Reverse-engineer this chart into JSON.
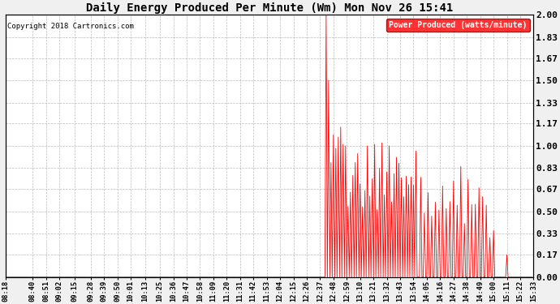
{
  "title": "Daily Energy Produced Per Minute (Wm) Mon Nov 26 15:41",
  "copyright": "Copyright 2018 Cartronics.com",
  "legend_label": "Power Produced (watts/minute)",
  "ylabel_right_ticks": [
    0.0,
    0.17,
    0.33,
    0.5,
    0.67,
    0.83,
    1.0,
    1.17,
    1.33,
    1.5,
    1.67,
    1.83,
    2.0
  ],
  "ylim": [
    0.0,
    2.0
  ],
  "line_color": "red",
  "background_color": "#f0f0f0",
  "plot_bg_color": "#ffffff",
  "grid_color": "#aaaaaa",
  "x_labels": [
    "08:18",
    "08:40",
    "08:51",
    "09:02",
    "09:15",
    "09:28",
    "09:39",
    "09:50",
    "10:01",
    "10:13",
    "10:25",
    "10:36",
    "10:47",
    "10:58",
    "11:09",
    "11:20",
    "11:31",
    "11:42",
    "11:53",
    "12:04",
    "12:15",
    "12:26",
    "12:37",
    "12:48",
    "12:59",
    "13:10",
    "13:21",
    "13:32",
    "13:43",
    "13:54",
    "14:05",
    "14:16",
    "14:27",
    "14:38",
    "14:49",
    "15:00",
    "15:11",
    "15:22",
    "15:33"
  ]
}
